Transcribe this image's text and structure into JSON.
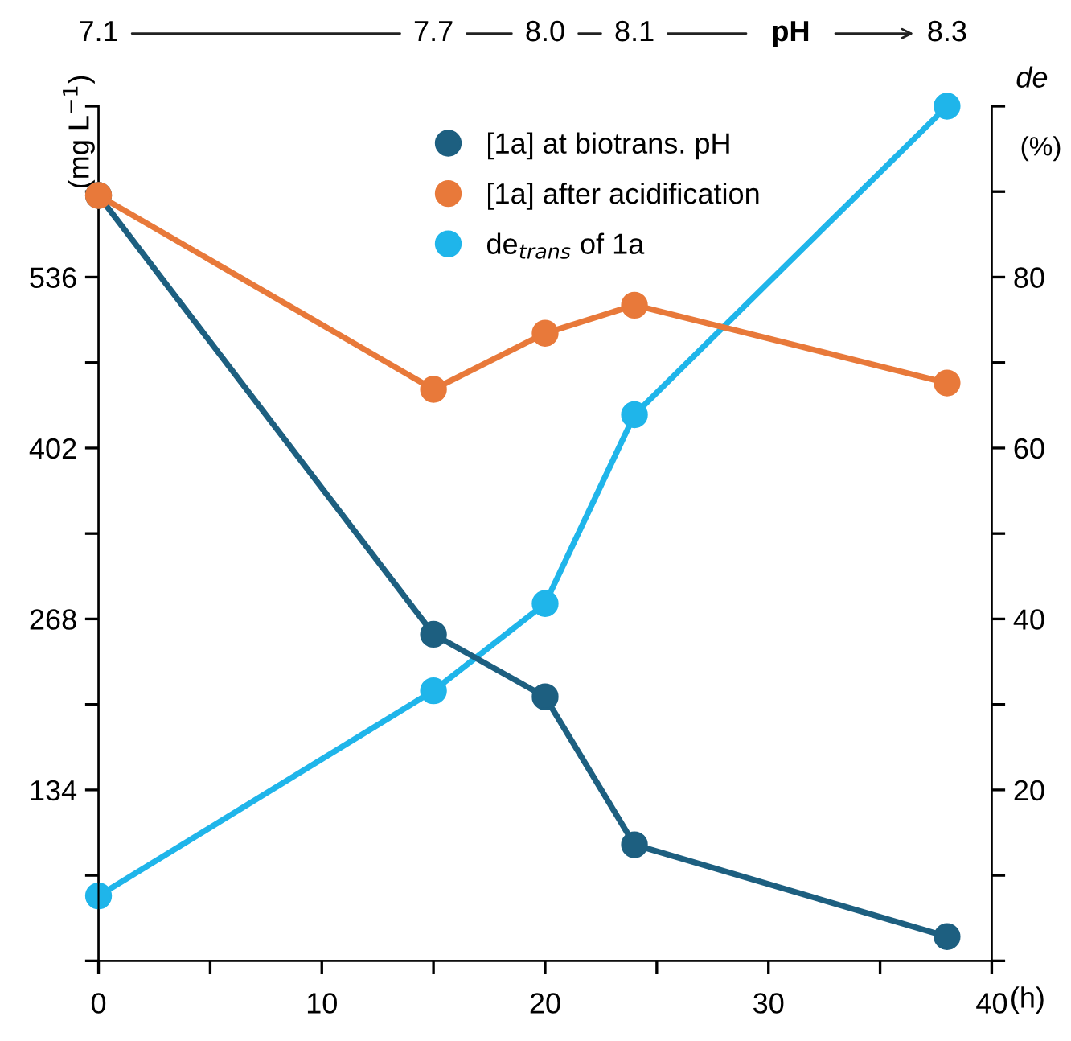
{
  "chart_data": {
    "type": "line",
    "x": [
      0,
      15,
      20,
      24,
      38
    ],
    "series": [
      {
        "name": "[1a] at biotrans. pH",
        "color": "#1d5f80",
        "values": [
          600,
          256,
          207,
          91,
          19
        ]
      },
      {
        "name": "[1a] after acidification",
        "color": "#e8793a",
        "values": [
          600,
          448,
          492,
          514,
          453
        ]
      },
      {
        "name": "de$_{trans}$ of 1a",
        "color": "#1fb5ea",
        "axis": "y2",
        "values": [
          7.6,
          31.6,
          41.8,
          63.9,
          100
        ]
      }
    ],
    "xlabel": "(h)",
    "ylabel": "(mg L$^{−1}$)",
    "y2label": "(%)",
    "x2label": "pH",
    "annotations": [
      "de",
      "7.1",
      "7.7",
      "8.0",
      "8.1",
      "8.3"
    ],
    "xlim": [
      0,
      40
    ],
    "xticks": [
      0,
      {
        "value": 5,
        "label": null
      },
      10,
      {
        "value": 15,
        "label": null
      },
      20,
      {
        "value": 25,
        "label": null
      },
      30,
      {
        "value": 35,
        "label": null
      },
      40
    ],
    "ylim": [
      0,
      670
    ],
    "yticks": [
      {
        "value": 0,
        "label": null
      },
      {
        "value": 67,
        "label": null
      },
      134,
      {
        "value": 201,
        "label": null
      },
      268,
      {
        "value": 335,
        "label": null
      },
      402,
      {
        "value": 469,
        "label": null
      },
      536,
      {
        "value": 603,
        "label": null
      },
      {
        "value": 670,
        "label": null
      }
    ],
    "y2lim": [
      0,
      100
    ],
    "y2ticks": [
      {
        "value": 0,
        "label": null
      },
      {
        "value": 10,
        "label": null
      },
      20,
      {
        "value": 30,
        "label": null
      },
      40,
      {
        "value": 50,
        "label": null
      },
      60,
      {
        "value": 70,
        "label": null
      },
      80,
      {
        "value": 90,
        "label": null
      },
      {
        "value": 100,
        "label": null
      }
    ],
    "marker": "circle",
    "line_style": "solid",
    "grid": false,
    "legend": "top"
  }
}
